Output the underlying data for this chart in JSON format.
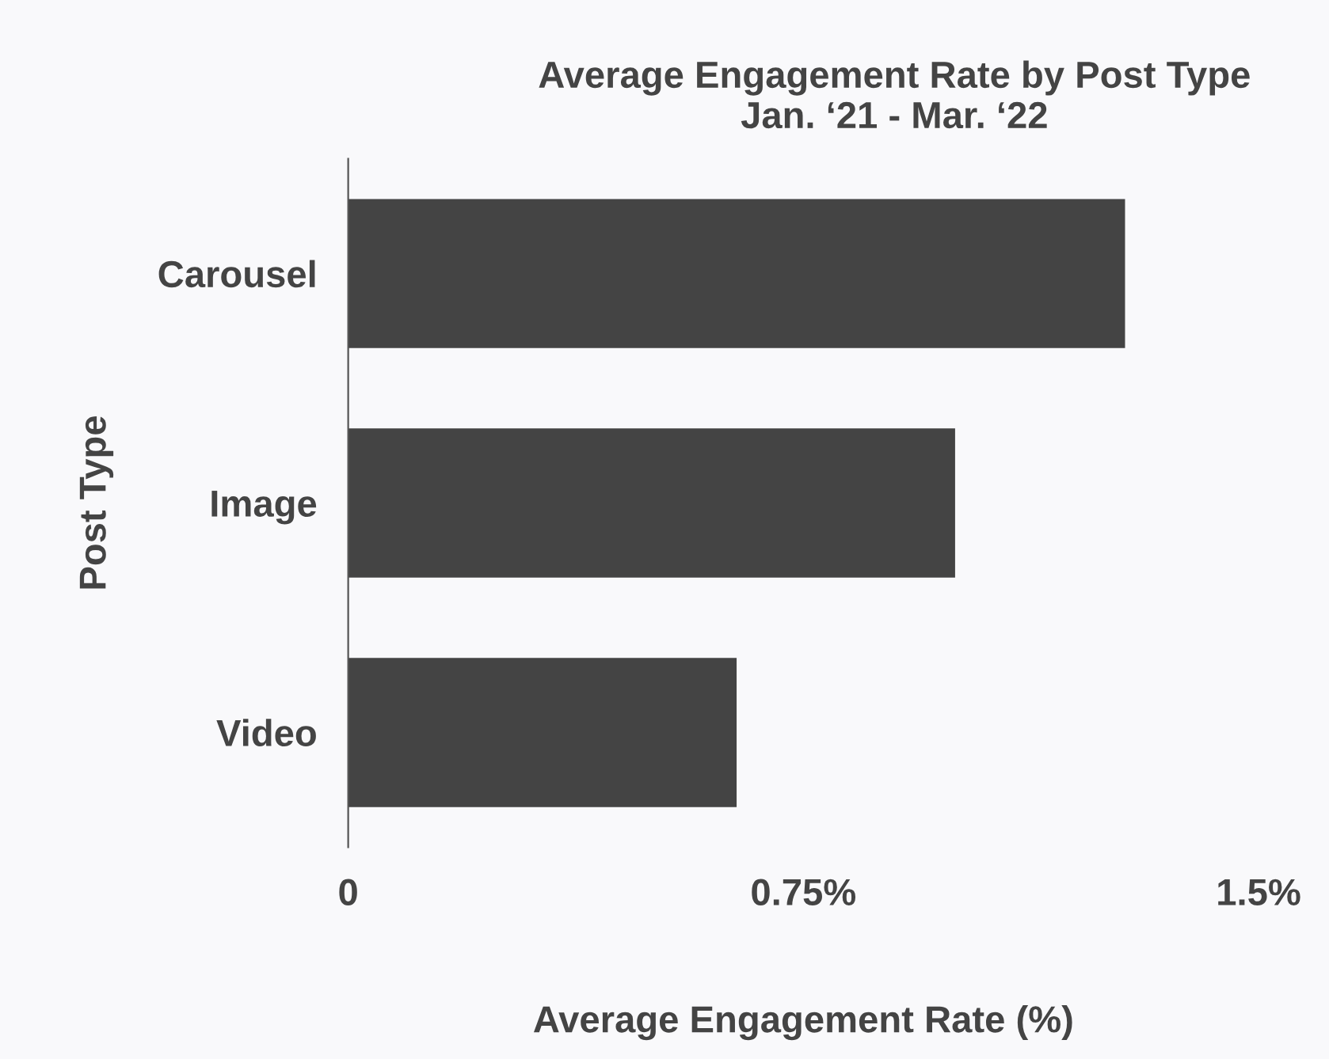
{
  "chart_data": {
    "type": "bar",
    "orientation": "horizontal",
    "title": "Average Engagement Rate by Post Type\nJan. ‘21 - Mar. ‘22",
    "xlabel": "Average Engagement Rate (%)",
    "ylabel": "Post Type",
    "categories": [
      "Carousel",
      "Image",
      "Video"
    ],
    "values": [
      1.28,
      1.0,
      0.64
    ],
    "color": "#444444",
    "xlim": [
      0,
      1.5
    ],
    "xticks": [
      0,
      {
        "value": 0.75,
        "label": "0.75%"
      },
      {
        "value": 1.5,
        "label": "1.5%"
      }
    ],
    "grid": false,
    "legend": false
  }
}
